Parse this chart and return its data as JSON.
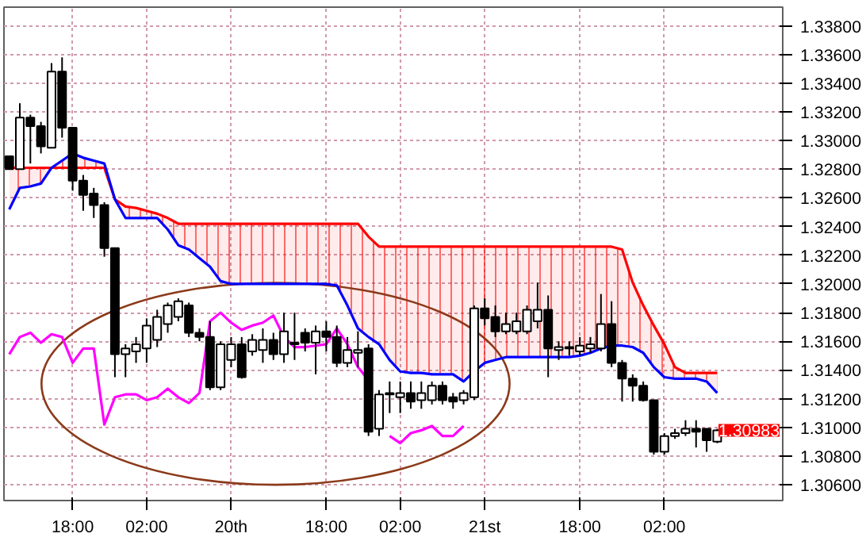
{
  "chart_data": {
    "type": "candlestick",
    "categories": [
      null,
      null,
      null,
      null,
      null,
      null,
      "18:00",
      null,
      null,
      null,
      null,
      null,
      null,
      "02:00",
      null,
      null,
      null,
      null,
      null,
      null,
      null,
      "20th",
      null,
      null,
      null,
      null,
      null,
      null,
      null,
      null,
      "18:00",
      null,
      null,
      null,
      null,
      null,
      null,
      "02:00",
      null,
      null,
      null,
      null,
      null,
      null,
      null,
      "21st",
      null,
      null,
      null,
      null,
      null,
      null,
      null,
      null,
      "18:00",
      null,
      null,
      null,
      null,
      null,
      null,
      null,
      "02:00",
      null,
      null,
      null,
      null,
      null
    ],
    "ohlc": [
      [
        1.3289,
        1.3289,
        1.328,
        1.328
      ],
      [
        1.328,
        1.3326,
        1.328,
        1.3316
      ],
      [
        1.3316,
        1.3318,
        1.3284,
        1.331
      ],
      [
        1.331,
        1.3313,
        1.3291,
        1.3296
      ],
      [
        1.3295,
        1.3354,
        1.3295,
        1.3348
      ],
      [
        1.3348,
        1.3358,
        1.3302,
        1.3309
      ],
      [
        1.3309,
        1.3309,
        1.3265,
        1.3272
      ],
      [
        1.3272,
        1.3276,
        1.3251,
        1.3262
      ],
      [
        1.3263,
        1.3267,
        1.3246,
        1.3255
      ],
      [
        1.3255,
        1.3257,
        1.3219,
        1.3225
      ],
      [
        1.3225,
        1.3225,
        1.3135,
        1.3151
      ],
      [
        1.3151,
        1.3158,
        1.3135,
        1.3155
      ],
      [
        1.3153,
        1.3163,
        1.3145,
        1.3158
      ],
      [
        1.3155,
        1.3176,
        1.3145,
        1.3171
      ],
      [
        1.3161,
        1.3182,
        1.3156,
        1.3177
      ],
      [
        1.3172,
        1.3187,
        1.3166,
        1.3185
      ],
      [
        1.3177,
        1.319,
        1.3174,
        1.3188
      ],
      [
        1.3185,
        1.3187,
        1.3163,
        1.3166
      ],
      [
        1.3166,
        1.3169,
        1.316,
        1.3163
      ],
      [
        1.3163,
        1.3174,
        1.3126,
        1.3128
      ],
      [
        1.3128,
        1.316,
        1.3126,
        1.3158
      ],
      [
        1.3147,
        1.3163,
        1.3142,
        1.3158
      ],
      [
        1.3158,
        1.3163,
        1.3134,
        1.3135
      ],
      [
        1.3153,
        1.3165,
        1.315,
        1.3161
      ],
      [
        1.3154,
        1.3169,
        1.3145,
        1.3161
      ],
      [
        1.3161,
        1.3166,
        1.3147,
        1.3151
      ],
      [
        1.3151,
        1.318,
        1.3145,
        1.3167
      ],
      [
        1.3158,
        1.318,
        1.3147,
        1.3159
      ],
      [
        1.3166,
        1.3169,
        1.3153,
        1.3159
      ],
      [
        1.3159,
        1.3171,
        1.3137,
        1.3167
      ],
      [
        1.3167,
        1.3174,
        1.3153,
        1.3163
      ],
      [
        1.3163,
        1.3171,
        1.3142,
        1.3145
      ],
      [
        1.3145,
        1.3163,
        1.3142,
        1.3154
      ],
      [
        1.3152,
        1.3167,
        1.3142,
        1.3154
      ],
      [
        1.3155,
        1.3158,
        1.3094,
        1.3097
      ],
      [
        1.3099,
        1.3126,
        1.3094,
        1.3123
      ],
      [
        1.3123,
        1.3132,
        1.311,
        1.3124
      ],
      [
        1.3121,
        1.3132,
        1.311,
        1.3124
      ],
      [
        1.3124,
        1.3132,
        1.3113,
        1.3118
      ],
      [
        1.3119,
        1.3132,
        1.3113,
        1.3124
      ],
      [
        1.3119,
        1.3132,
        1.3116,
        1.3129
      ],
      [
        1.3129,
        1.3132,
        1.3116,
        1.3119
      ],
      [
        1.3121,
        1.3124,
        1.3113,
        1.3118
      ],
      [
        1.3119,
        1.3126,
        1.3116,
        1.3124
      ],
      [
        1.3121,
        1.3185,
        1.3119,
        1.3183
      ],
      [
        1.3183,
        1.319,
        1.3171,
        1.3176
      ],
      [
        1.3177,
        1.3185,
        1.3163,
        1.3167
      ],
      [
        1.3167,
        1.318,
        1.3165,
        1.3172
      ],
      [
        1.3167,
        1.318,
        1.3165,
        1.3174
      ],
      [
        1.3167,
        1.3185,
        1.3165,
        1.3182
      ],
      [
        1.3174,
        1.3201,
        1.3169,
        1.3182
      ],
      [
        1.3182,
        1.3192,
        1.3135,
        1.3155
      ],
      [
        1.3154,
        1.316,
        1.3147,
        1.3156
      ],
      [
        1.3155,
        1.316,
        1.315,
        1.3156
      ],
      [
        1.3153,
        1.3163,
        1.315,
        1.3157
      ],
      [
        1.3155,
        1.3163,
        1.3152,
        1.3158
      ],
      [
        1.3155,
        1.3193,
        1.3153,
        1.3172
      ],
      [
        1.3172,
        1.3188,
        1.3142,
        1.3145
      ],
      [
        1.3145,
        1.3147,
        1.3118,
        1.3134
      ],
      [
        1.3134,
        1.3137,
        1.3118,
        1.3129
      ],
      [
        1.3129,
        1.3132,
        1.3118,
        1.3119
      ],
      [
        1.3119,
        1.3119,
        1.3081,
        1.3083
      ],
      [
        1.3083,
        1.3096,
        1.3081,
        1.3094
      ],
      [
        1.3094,
        1.3099,
        1.3092,
        1.3096
      ],
      [
        1.3096,
        1.3105,
        1.3094,
        1.3099
      ],
      [
        1.3099,
        1.3105,
        1.3086,
        1.3097
      ],
      [
        1.3099,
        1.3099,
        1.3083,
        1.3091
      ],
      [
        1.309,
        1.3099,
        1.3089,
        1.3098
      ]
    ],
    "series": [
      {
        "type": "line",
        "color": "#ff0000",
        "upper": [
          1.3281,
          1.3281,
          1.3281,
          1.3281,
          1.3281,
          1.3281,
          1.3281,
          1.3281,
          1.3281,
          1.3281,
          1.3259,
          1.3254,
          1.3253,
          1.3251,
          1.3249,
          1.3246,
          1.3242,
          1.3242,
          1.3242,
          1.3242,
          1.3242,
          1.3242,
          1.3242,
          1.3242,
          1.3242,
          1.3242,
          1.3242,
          1.3242,
          1.3242,
          1.3242,
          1.3242,
          1.3242,
          1.3242,
          1.3242,
          1.3233,
          1.3226,
          1.3226,
          1.3226,
          1.3226,
          1.3226,
          1.3226,
          1.3226,
          1.3226,
          1.3226,
          1.3226,
          1.3226,
          1.3226,
          1.3226,
          1.3226,
          1.3226,
          1.3226,
          1.3226,
          1.3226,
          1.3226,
          1.3226,
          1.3226,
          1.3226,
          1.3226,
          1.3224,
          1.3201,
          1.3185,
          1.3171,
          1.3158,
          1.3142,
          1.3138,
          1.3138,
          1.3138,
          1.3138
        ],
        "lower": [
          1.3252,
          1.3267,
          1.3268,
          1.327,
          1.3281,
          1.3286,
          1.3291,
          1.3288,
          1.3286,
          1.3284,
          1.3259,
          1.3246,
          1.3246,
          1.3246,
          1.3246,
          1.3238,
          1.3227,
          1.3224,
          1.3218,
          1.3212,
          1.3202,
          1.32,
          1.32,
          1.32,
          1.32,
          1.32,
          1.32,
          1.32,
          1.32,
          1.32,
          1.32,
          1.3199,
          1.3185,
          1.3169,
          1.3163,
          1.3158,
          1.3147,
          1.3139,
          1.3138,
          1.3138,
          1.3137,
          1.3137,
          1.3137,
          1.3132,
          1.3139,
          1.3145,
          1.3147,
          1.3149,
          1.3149,
          1.3149,
          1.3149,
          1.3149,
          1.3149,
          1.3149,
          1.315,
          1.3152,
          1.3155,
          1.3157,
          1.3157,
          1.3156,
          1.3152,
          1.3142,
          1.3135,
          1.3134,
          1.3134,
          1.3134,
          1.3132,
          1.3124
        ],
        "values": [
          1.3281,
          1.3281,
          1.3281,
          1.3281,
          1.3281,
          1.3281,
          1.3281,
          1.3281,
          1.3281,
          1.3281,
          1.3259,
          1.3254,
          1.3253,
          1.3251,
          1.3249,
          1.3246,
          1.3242,
          1.3242,
          1.3242,
          1.3242,
          1.3242,
          1.3242,
          1.3242,
          1.3242,
          1.3242,
          1.3242,
          1.3242,
          1.3242,
          1.3242,
          1.3242,
          1.3242,
          1.3242,
          1.3242,
          1.3242,
          1.3233,
          1.3226,
          1.3226,
          1.3226,
          1.3226,
          1.3226,
          1.3226,
          1.3226,
          1.3226,
          1.3226,
          1.3226,
          1.3226,
          1.3226,
          1.3226,
          1.3226,
          1.3226,
          1.3226,
          1.3226,
          1.3226,
          1.3226,
          1.3226,
          1.3226,
          1.3226,
          1.3226,
          1.3224,
          1.3201,
          1.3185,
          1.3171,
          1.3158,
          1.3142,
          1.3138,
          1.3138,
          1.3138,
          1.3138
        ]
      },
      {
        "type": "line",
        "color": "#0000ff",
        "values": [
          1.3252,
          1.3267,
          1.3268,
          1.327,
          1.3281,
          1.3286,
          1.3291,
          1.3288,
          1.3286,
          1.3284,
          1.3259,
          1.3246,
          1.3246,
          1.3246,
          1.3246,
          1.3238,
          1.3227,
          1.3224,
          1.3218,
          1.3212,
          1.3202,
          1.32,
          1.32,
          1.32,
          1.32,
          1.32,
          1.32,
          1.32,
          1.32,
          1.32,
          1.32,
          1.3199,
          1.3185,
          1.3169,
          1.3163,
          1.3158,
          1.3147,
          1.3139,
          1.3138,
          1.3138,
          1.3137,
          1.3137,
          1.3137,
          1.3132,
          1.3139,
          1.3145,
          1.3147,
          1.3149,
          1.3149,
          1.3149,
          1.3149,
          1.3149,
          1.3149,
          1.3149,
          1.315,
          1.3152,
          1.3155,
          1.3157,
          1.3157,
          1.3156,
          1.3152,
          1.3142,
          1.3135,
          1.3134,
          1.3134,
          1.3134,
          1.3132,
          1.3124
        ]
      },
      {
        "type": "line",
        "color": "#ff00ff",
        "values": [
          1.3151,
          1.3163,
          1.3166,
          1.3159,
          1.3165,
          1.3163,
          1.3145,
          1.3155,
          1.3155,
          1.3102,
          1.3121,
          1.3123,
          1.3123,
          1.3119,
          1.3121,
          1.3127,
          1.3121,
          1.3117,
          1.3124,
          1.3174,
          1.318,
          1.3173,
          1.3168,
          1.3171,
          1.3173,
          1.3178,
          1.3163,
          1.3156,
          1.3156,
          1.3157,
          1.3158,
          1.3169,
          1.3158,
          1.3142,
          1.3133,
          null,
          1.3094,
          1.3089,
          1.3096,
          1.3098,
          1.3101,
          1.3094,
          1.3094,
          1.3101,
          null,
          null,
          null,
          null,
          null,
          null,
          null,
          null,
          null,
          null,
          null,
          null,
          null,
          null,
          null,
          null,
          null,
          null,
          null,
          null,
          null,
          null,
          null,
          null
        ]
      }
    ],
    "ylim": [
      1.3049,
      1.3393
    ],
    "yticks": [
      {
        "value": 1.306,
        "label": "1.30600"
      },
      {
        "value": 1.308,
        "label": "1.30800"
      },
      {
        "value": 1.31,
        "label": "1.31000"
      },
      {
        "value": 1.312,
        "label": "1.31200"
      },
      {
        "value": 1.314,
        "label": "1.31400"
      },
      {
        "value": 1.316,
        "label": "1.31600"
      },
      {
        "value": 1.318,
        "label": "1.31800"
      },
      {
        "value": 1.32,
        "label": "1.32000"
      },
      {
        "value": 1.322,
        "label": "1.32200"
      },
      {
        "value": 1.324,
        "label": "1.32400"
      },
      {
        "value": 1.326,
        "label": "1.32600"
      },
      {
        "value": 1.328,
        "label": "1.32800"
      },
      {
        "value": 1.33,
        "label": "1.33000"
      },
      {
        "value": 1.332,
        "label": "1.33200"
      },
      {
        "value": 1.334,
        "label": "1.33400"
      },
      {
        "value": 1.336,
        "label": "1.33600"
      },
      {
        "value": 1.338,
        "label": "1.33800"
      }
    ],
    "grid": true,
    "annotations": [
      "1.30983"
    ]
  }
}
